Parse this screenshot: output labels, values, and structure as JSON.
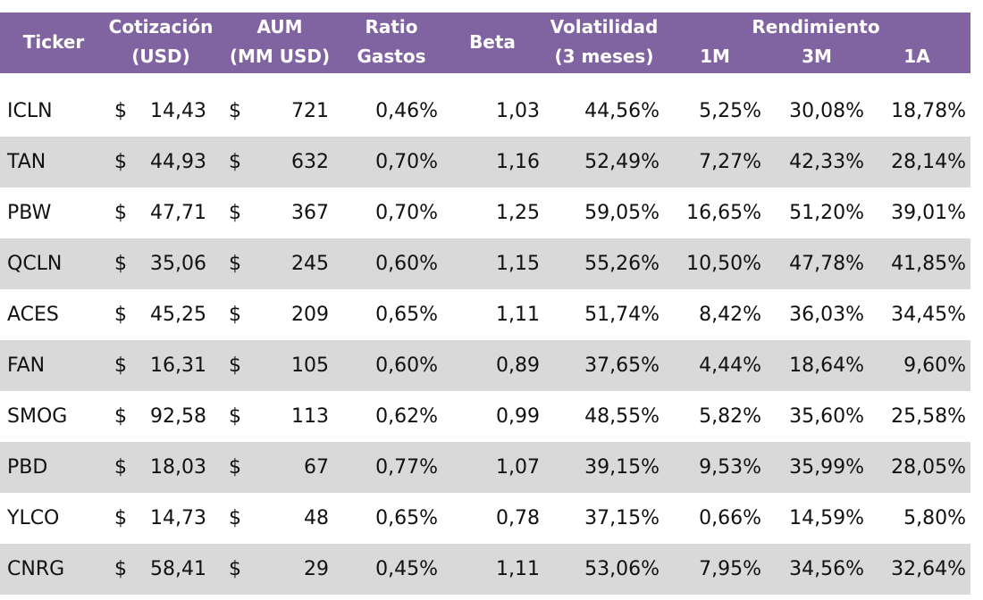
{
  "header": {
    "ticker": "Ticker",
    "cotizacion": [
      "Cotización",
      "(USD)"
    ],
    "aum": [
      "AUM",
      "(MM USD)"
    ],
    "ratio": [
      "Ratio",
      "Gastos"
    ],
    "beta": "Beta",
    "volatilidad": [
      "Volatilidad",
      "(3 meses)"
    ],
    "rendimiento": "Rendimiento",
    "r1m": "1M",
    "r3m": "3M",
    "r1a": "1A"
  },
  "currency_symbol": "$",
  "rows": [
    {
      "ticker": "ICLN",
      "price": "14,43",
      "aum": "721",
      "ratio": "0,46%",
      "beta": "1,03",
      "vol": "44,56%",
      "r1m": "5,25%",
      "r3m": "30,08%",
      "r1a": "18,78%"
    },
    {
      "ticker": "TAN",
      "price": "44,93",
      "aum": "632",
      "ratio": "0,70%",
      "beta": "1,16",
      "vol": "52,49%",
      "r1m": "7,27%",
      "r3m": "42,33%",
      "r1a": "28,14%"
    },
    {
      "ticker": "PBW",
      "price": "47,71",
      "aum": "367",
      "ratio": "0,70%",
      "beta": "1,25",
      "vol": "59,05%",
      "r1m": "16,65%",
      "r3m": "51,20%",
      "r1a": "39,01%"
    },
    {
      "ticker": "QCLN",
      "price": "35,06",
      "aum": "245",
      "ratio": "0,60%",
      "beta": "1,15",
      "vol": "55,26%",
      "r1m": "10,50%",
      "r3m": "47,78%",
      "r1a": "41,85%"
    },
    {
      "ticker": "ACES",
      "price": "45,25",
      "aum": "209",
      "ratio": "0,65%",
      "beta": "1,11",
      "vol": "51,74%",
      "r1m": "8,42%",
      "r3m": "36,03%",
      "r1a": "34,45%"
    },
    {
      "ticker": "FAN",
      "price": "16,31",
      "aum": "105",
      "ratio": "0,60%",
      "beta": "0,89",
      "vol": "37,65%",
      "r1m": "4,44%",
      "r3m": "18,64%",
      "r1a": "9,60%"
    },
    {
      "ticker": "SMOG",
      "price": "92,58",
      "aum": "113",
      "ratio": "0,62%",
      "beta": "0,99",
      "vol": "48,55%",
      "r1m": "5,82%",
      "r3m": "35,60%",
      "r1a": "25,58%"
    },
    {
      "ticker": "PBD",
      "price": "18,03",
      "aum": "67",
      "ratio": "0,77%",
      "beta": "1,07",
      "vol": "39,15%",
      "r1m": "9,53%",
      "r3m": "35,99%",
      "r1a": "28,05%"
    },
    {
      "ticker": "YLCO",
      "price": "14,73",
      "aum": "48",
      "ratio": "0,65%",
      "beta": "0,78",
      "vol": "37,15%",
      "r1m": "0,66%",
      "r3m": "14,59%",
      "r1a": "5,80%"
    },
    {
      "ticker": "CNRG",
      "price": "58,41",
      "aum": "29",
      "ratio": "0,45%",
      "beta": "1,11",
      "vol": "53,06%",
      "r1m": "7,95%",
      "r3m": "34,56%",
      "r1a": "32,64%"
    }
  ],
  "colors": {
    "header_bg": "#8064a2",
    "header_text": "#ffffff",
    "band": "#d9d9d9"
  }
}
